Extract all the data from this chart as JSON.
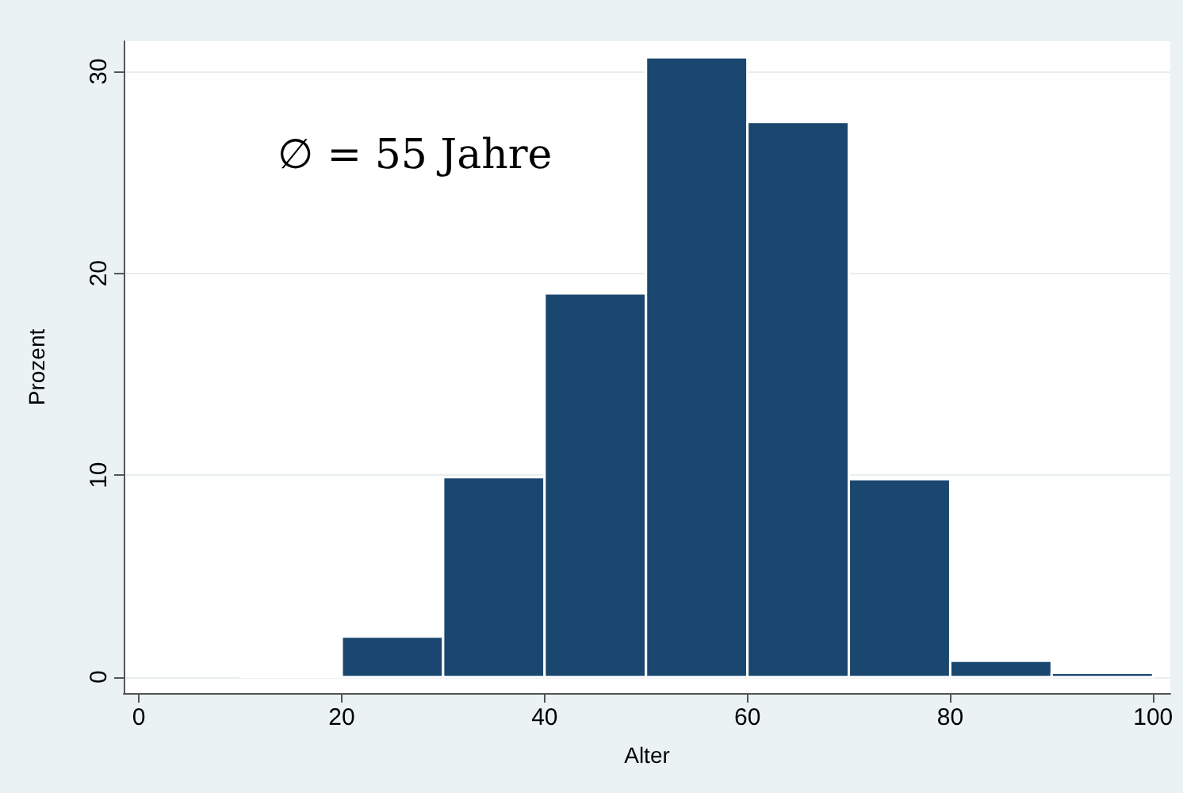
{
  "chart_data": {
    "type": "histogram",
    "xlabel": "Alter",
    "ylabel": "Prozent",
    "annotations": [
      "∅ = 55 Jahre"
    ],
    "bins": [
      10,
      20,
      30,
      40,
      50,
      60,
      70,
      80,
      90,
      100
    ],
    "values": [
      0.1,
      2.0,
      9.9,
      19.0,
      30.7,
      27.5,
      9.8,
      0.8,
      0.2
    ],
    "color": "#1a476f",
    "xlim": [
      -1.5,
      101.7
    ],
    "ylim": [
      -0.8,
      31.5
    ],
    "xticks": [
      0,
      20,
      40,
      60,
      80,
      100
    ],
    "yticks": [
      0,
      10,
      20,
      30
    ],
    "grid": "y"
  }
}
